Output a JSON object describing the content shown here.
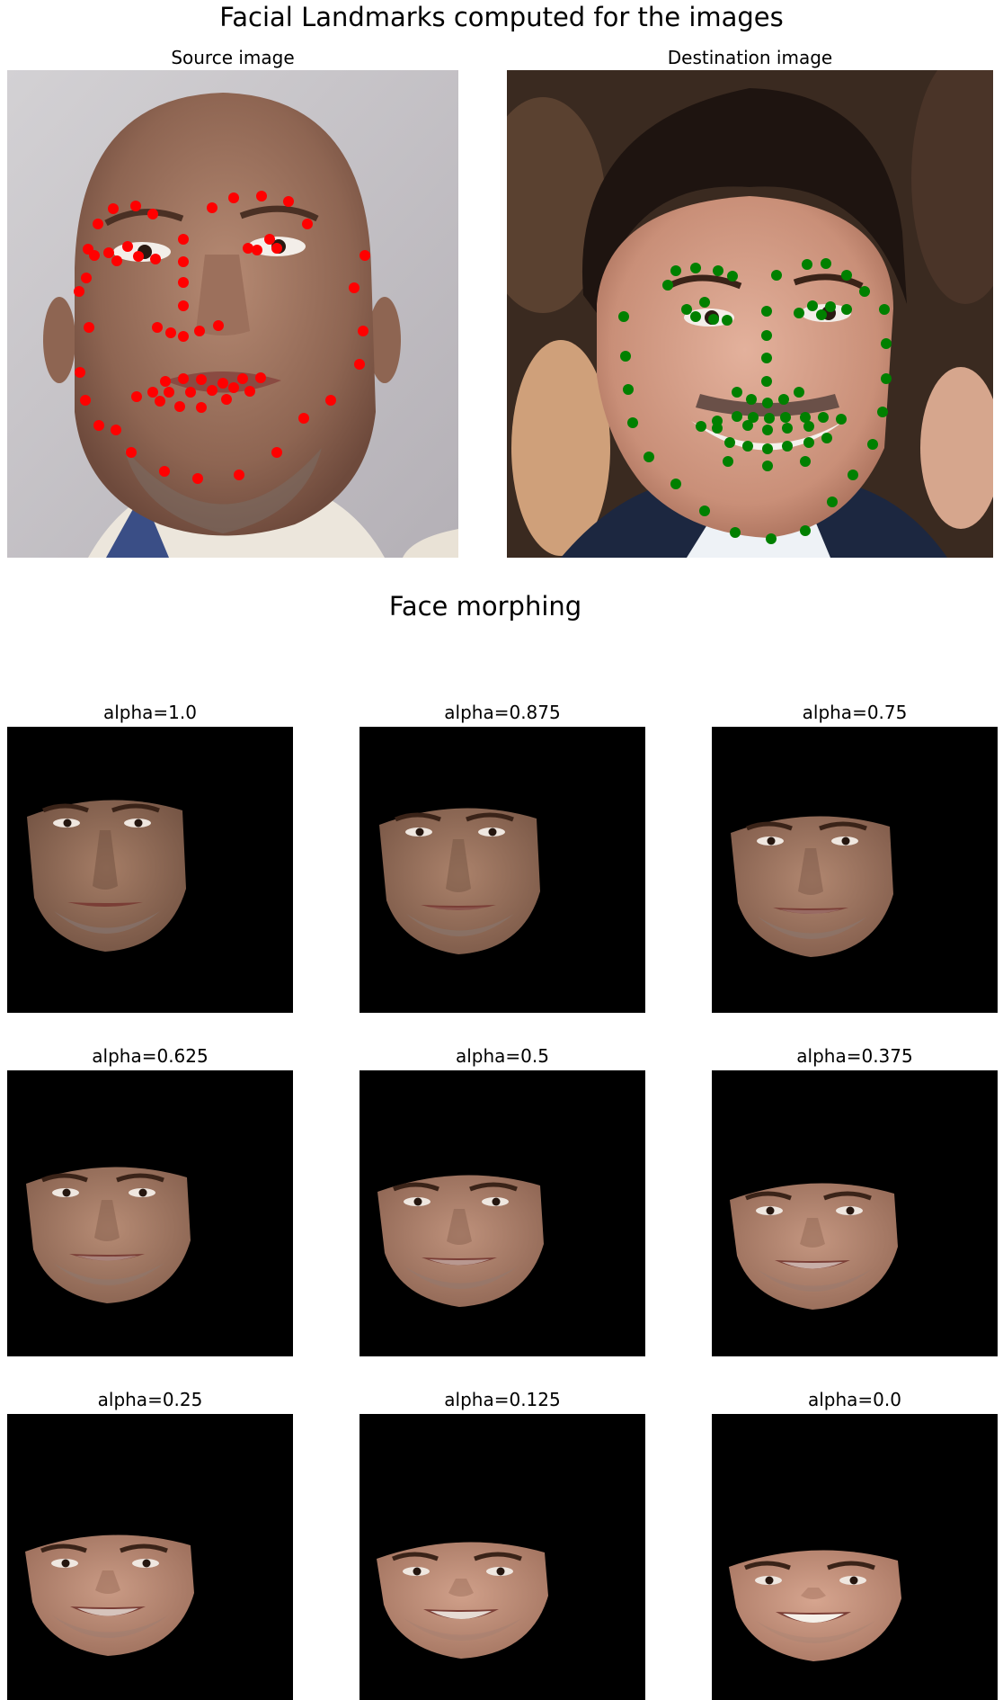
{
  "figure": {
    "title": "Facial Landmarks computed for the images",
    "subtitle": "Face morphing"
  },
  "source": {
    "title": "Source image",
    "marker_color": "#ff0000"
  },
  "destination": {
    "title": "Destination image",
    "marker_color": "#008000"
  },
  "morph_panels": [
    {
      "title": "alpha=1.0",
      "alpha": 1.0
    },
    {
      "title": "alpha=0.875",
      "alpha": 0.875
    },
    {
      "title": "alpha=0.75",
      "alpha": 0.75
    },
    {
      "title": "alpha=0.625",
      "alpha": 0.625
    },
    {
      "title": "alpha=0.5",
      "alpha": 0.5
    },
    {
      "title": "alpha=0.375",
      "alpha": 0.375
    },
    {
      "title": "alpha=0.25",
      "alpha": 0.25
    },
    {
      "title": "alpha=0.125",
      "alpha": 0.125
    },
    {
      "title": "alpha=0.0",
      "alpha": 0.0
    }
  ]
}
